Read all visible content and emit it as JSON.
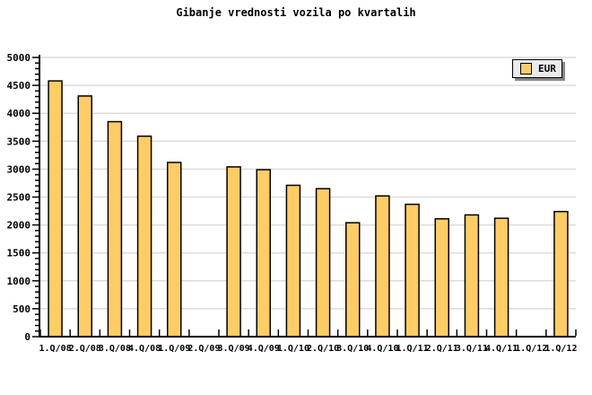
{
  "chart_data": {
    "type": "bar",
    "title": "Gibanje vrednosti vozila po kvartalih",
    "legend": [
      {
        "label": "EUR",
        "color": "#FFCC66"
      }
    ],
    "legend_position": "top-right",
    "categories": [
      "1.Q/08",
      "2.Q/08",
      "3.Q/08",
      "4.Q/08",
      "1.Q/09",
      "2.Q/09",
      "3.Q/09",
      "4.Q/09",
      "1.Q/10",
      "2.Q/10",
      "3.Q/10",
      "4.Q/10",
      "1.Q/11",
      "2.Q/11",
      "3.Q/11",
      "4.Q/11",
      "1.Q/12",
      "1.Q/12"
    ],
    "series": [
      {
        "name": "EUR",
        "values": [
          4580,
          4310,
          3850,
          3590,
          3120,
          null,
          3040,
          2990,
          2710,
          2650,
          2040,
          2520,
          2370,
          2110,
          2180,
          2120,
          null,
          2240
        ]
      }
    ],
    "xlabel": "",
    "ylabel": "",
    "ylim": [
      0,
      5000
    ],
    "ytick_major": 500,
    "ytick_minor": 100,
    "grid": "horizontal-major",
    "colors": {
      "bar_fill": "#FFCC66",
      "bar_border": "#000000",
      "grid": "#DCDCDC",
      "axis": "#000000",
      "tick_text": "#000000",
      "legend_bg": "#EBEBEB",
      "legend_shadow": "#888888",
      "background": "#FFFFFF"
    }
  }
}
